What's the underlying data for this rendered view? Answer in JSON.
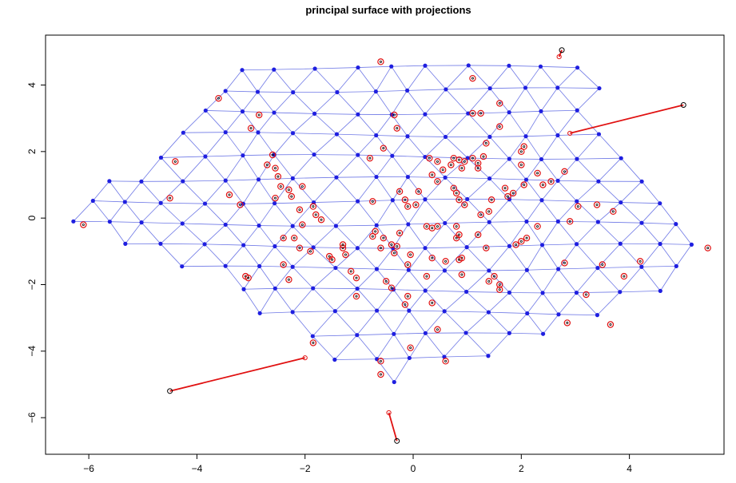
{
  "chart_data": {
    "type": "scatter",
    "title": "principal surface with projections",
    "xlabel": "",
    "ylabel": "",
    "xlim": [
      -6.8,
      5.75
    ],
    "ylim": [
      -7.1,
      5.5
    ],
    "x_ticks": [
      -6,
      -4,
      -2,
      0,
      2,
      4
    ],
    "y_ticks": [
      -6,
      -4,
      -2,
      0,
      2,
      4
    ],
    "x_tick_labels": [
      "−6",
      "−4",
      "−2",
      "0",
      "2",
      "4"
    ],
    "y_tick_labels": [
      "−6",
      "−4",
      "−2",
      "0",
      "2",
      "4"
    ],
    "grid": false,
    "colors": {
      "mesh": "#6e78e6",
      "nodes": "#1f1fe0",
      "projections": "#e01010",
      "points": "#000000",
      "residual_lines": "#e01010"
    },
    "outliers": [
      {
        "x": 5.0,
        "y": 3.4,
        "px": 2.9,
        "py": 2.55
      },
      {
        "x": -4.5,
        "y": -5.2,
        "px": -2.0,
        "py": -4.2
      },
      {
        "x": -0.3,
        "y": -6.7,
        "px": -0.45,
        "py": -5.85
      },
      {
        "x": 2.75,
        "y": 5.05,
        "px": 2.7,
        "py": 4.85
      }
    ],
    "points": [
      [
        -6.1,
        -0.2
      ],
      [
        -4.5,
        0.6
      ],
      [
        -4.4,
        1.7
      ],
      [
        -3.6,
        3.6
      ],
      [
        -3.4,
        0.7
      ],
      [
        -3.2,
        0.4
      ],
      [
        -3.0,
        2.7
      ],
      [
        -2.85,
        3.1
      ],
      [
        -2.7,
        1.6
      ],
      [
        -2.6,
        1.9
      ],
      [
        -2.55,
        1.5
      ],
      [
        -2.5,
        1.25
      ],
      [
        -2.55,
        0.6
      ],
      [
        -2.45,
        0.95
      ],
      [
        -2.3,
        0.85
      ],
      [
        -2.25,
        0.65
      ],
      [
        -2.05,
        0.95
      ],
      [
        -2.1,
        0.25
      ],
      [
        -2.05,
        -0.2
      ],
      [
        -1.85,
        0.35
      ],
      [
        -1.8,
        0.1
      ],
      [
        -1.7,
        -0.05
      ],
      [
        -2.4,
        -0.6
      ],
      [
        -2.2,
        -0.6
      ],
      [
        -2.4,
        -1.4
      ],
      [
        -2.3,
        -1.85
      ],
      [
        -2.1,
        -0.9
      ],
      [
        -1.9,
        -1.0
      ],
      [
        -1.55,
        -1.15
      ],
      [
        -1.5,
        -1.25
      ],
      [
        -1.3,
        -0.9
      ],
      [
        -1.25,
        -1.1
      ],
      [
        -1.3,
        -0.8
      ],
      [
        -1.15,
        -1.6
      ],
      [
        -1.05,
        -1.8
      ],
      [
        -1.05,
        -2.35
      ],
      [
        -1.85,
        -3.75
      ],
      [
        -3.1,
        -1.75
      ],
      [
        -3.05,
        -1.8
      ],
      [
        -0.7,
        -0.4
      ],
      [
        -0.55,
        -0.6
      ],
      [
        -0.6,
        -0.9
      ],
      [
        -0.4,
        -0.8
      ],
      [
        -0.5,
        -1.9
      ],
      [
        -0.4,
        -2.1
      ],
      [
        -0.6,
        -4.3
      ],
      [
        -0.6,
        -4.7
      ],
      [
        -0.75,
        0.5
      ],
      [
        -0.8,
        1.8
      ],
      [
        -0.75,
        -0.55
      ],
      [
        -0.55,
        2.1
      ],
      [
        -0.6,
        4.7
      ],
      [
        -0.35,
        3.1
      ],
      [
        -0.3,
        2.7
      ],
      [
        -0.25,
        0.8
      ],
      [
        -0.15,
        0.55
      ],
      [
        -0.1,
        0.35
      ],
      [
        0.05,
        0.4
      ],
      [
        -0.25,
        -0.45
      ],
      [
        -0.3,
        -0.85
      ],
      [
        -0.35,
        -1.05
      ],
      [
        -0.05,
        -1.1
      ],
      [
        -0.1,
        -1.4
      ],
      [
        -0.1,
        -2.35
      ],
      [
        -0.15,
        -2.6
      ],
      [
        -0.05,
        -3.9
      ],
      [
        0.25,
        -0.25
      ],
      [
        0.35,
        -0.3
      ],
      [
        0.45,
        -0.25
      ],
      [
        0.25,
        -1.75
      ],
      [
        0.35,
        -2.55
      ],
      [
        0.45,
        -3.35
      ],
      [
        0.35,
        -1.2
      ],
      [
        0.6,
        -1.3
      ],
      [
        0.6,
        -4.3
      ],
      [
        0.1,
        0.8
      ],
      [
        0.3,
        1.8
      ],
      [
        0.35,
        1.3
      ],
      [
        0.45,
        1.7
      ],
      [
        0.45,
        1.1
      ],
      [
        0.55,
        1.45
      ],
      [
        0.7,
        1.6
      ],
      [
        0.75,
        1.8
      ],
      [
        0.85,
        1.75
      ],
      [
        0.95,
        1.7
      ],
      [
        0.9,
        1.5
      ],
      [
        0.75,
        0.9
      ],
      [
        0.8,
        0.75
      ],
      [
        0.85,
        0.55
      ],
      [
        0.95,
        0.4
      ],
      [
        0.8,
        -0.6
      ],
      [
        0.85,
        -0.5
      ],
      [
        0.8,
        -0.25
      ],
      [
        0.9,
        -1.2
      ],
      [
        0.85,
        -1.25
      ],
      [
        0.9,
        -1.7
      ],
      [
        1.1,
        1.8
      ],
      [
        1.2,
        1.65
      ],
      [
        1.2,
        1.5
      ],
      [
        1.3,
        1.85
      ],
      [
        1.2,
        -0.5
      ],
      [
        1.25,
        0.1
      ],
      [
        1.35,
        -0.9
      ],
      [
        1.4,
        0.2
      ],
      [
        1.45,
        0.55
      ],
      [
        1.5,
        -1.75
      ],
      [
        1.4,
        -1.9
      ],
      [
        1.6,
        -2.0
      ],
      [
        1.6,
        -2.15
      ],
      [
        1.7,
        0.9
      ],
      [
        1.75,
        0.65
      ],
      [
        1.85,
        0.75
      ],
      [
        1.9,
        -0.8
      ],
      [
        2.0,
        -0.7
      ],
      [
        2.0,
        1.6
      ],
      [
        2.05,
        1.0
      ],
      [
        2.05,
        2.15
      ],
      [
        2.1,
        -0.6
      ],
      [
        2.3,
        1.35
      ],
      [
        2.3,
        -0.25
      ],
      [
        2.4,
        1.0
      ],
      [
        2.55,
        1.1
      ],
      [
        2.8,
        1.4
      ],
      [
        2.8,
        -1.35
      ],
      [
        2.9,
        -0.1
      ],
      [
        2.85,
        -3.15
      ],
      [
        3.05,
        0.35
      ],
      [
        3.2,
        -2.3
      ],
      [
        3.4,
        0.4
      ],
      [
        3.5,
        -1.4
      ],
      [
        3.65,
        -3.2
      ],
      [
        3.7,
        0.2
      ],
      [
        3.9,
        -1.75
      ],
      [
        4.2,
        -1.3
      ],
      [
        5.45,
        -0.9
      ],
      [
        1.35,
        2.25
      ],
      [
        1.6,
        2.75
      ],
      [
        1.6,
        3.45
      ],
      [
        2.0,
        2.0
      ],
      [
        1.25,
        3.15
      ],
      [
        1.1,
        3.15
      ],
      [
        1.1,
        4.2
      ]
    ]
  }
}
